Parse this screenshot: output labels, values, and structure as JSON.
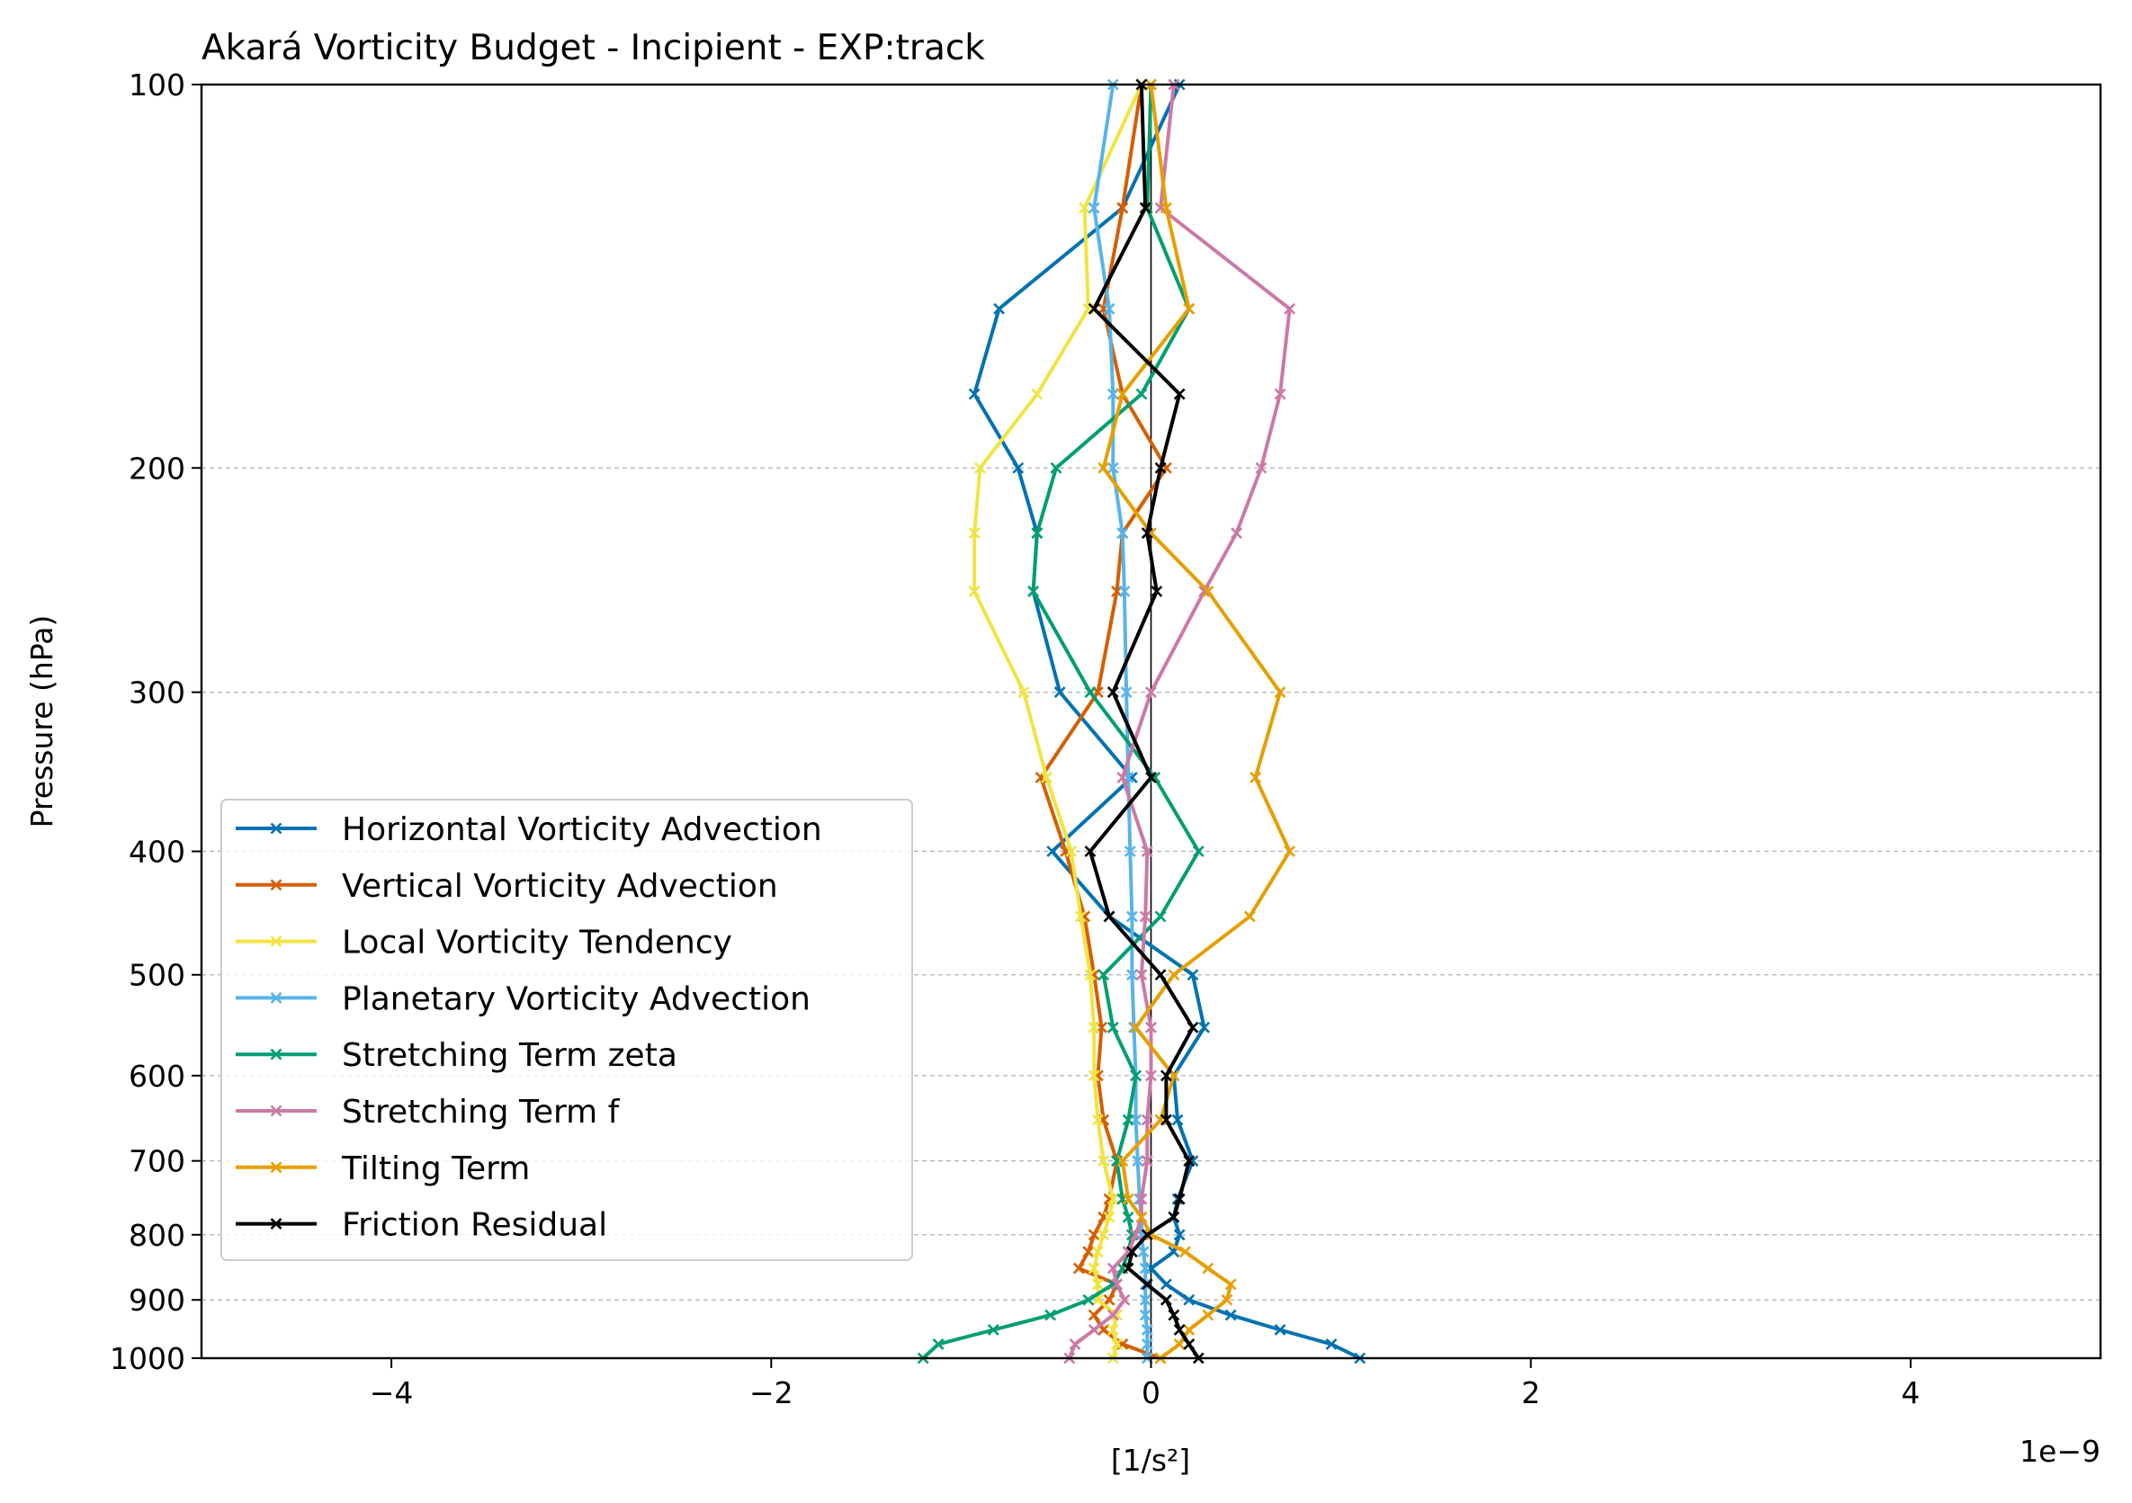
{
  "chart_data": {
    "type": "line",
    "title": "Akará Vorticity Budget - Incipient - EXP:track",
    "xlabel": "[1/s²]",
    "ylabel": "Pressure (hPa)",
    "x_offset_label": "1e−9",
    "x_scale_factor": 1e-09,
    "xlim": [
      -5,
      5
    ],
    "ylim": [
      1000,
      100
    ],
    "y_scale": "log",
    "x_ticks": [
      -4,
      -2,
      0,
      2,
      4
    ],
    "x_tick_labels": [
      "−4",
      "−2",
      "0",
      "2",
      "4"
    ],
    "y_ticks": [
      100,
      200,
      300,
      400,
      500,
      600,
      700,
      800,
      900,
      1000
    ],
    "y_tick_labels": [
      "100",
      "200",
      "300",
      "400",
      "500",
      "600",
      "700",
      "800",
      "900",
      "1000"
    ],
    "grid": "horizontal dashed at y ticks",
    "zero_line": true,
    "legend_position": "lower-left",
    "pressure_levels": [
      1000,
      975,
      950,
      925,
      900,
      875,
      850,
      825,
      800,
      775,
      750,
      700,
      650,
      600,
      550,
      500,
      450,
      400,
      350,
      300,
      250,
      225,
      200,
      175,
      150,
      125,
      100
    ],
    "series": [
      {
        "name": "Horizontal Vorticity Advection",
        "color": "#0072B2",
        "values": [
          1.1,
          0.95,
          0.68,
          0.42,
          0.2,
          0.08,
          0.0,
          0.12,
          0.15,
          0.12,
          0.14,
          0.22,
          0.14,
          0.12,
          0.28,
          0.22,
          -0.22,
          -0.52,
          -0.1,
          -0.48,
          -0.62,
          -0.6,
          -0.7,
          -0.93,
          -0.8,
          -0.15,
          0.15
        ]
      },
      {
        "name": "Vertical Vorticity Advection",
        "color": "#D55E00",
        "values": [
          0.05,
          -0.15,
          -0.25,
          -0.3,
          -0.22,
          -0.18,
          -0.38,
          -0.33,
          -0.3,
          -0.25,
          -0.22,
          -0.18,
          -0.25,
          -0.28,
          -0.26,
          -0.3,
          -0.35,
          -0.45,
          -0.58,
          -0.28,
          -0.18,
          -0.15,
          0.08,
          -0.15,
          -0.25,
          -0.15,
          -0.05
        ]
      },
      {
        "name": "Local Vorticity Tendency",
        "color": "#F0E442",
        "values": [
          -0.2,
          -0.18,
          -0.2,
          -0.18,
          -0.28,
          -0.28,
          -0.3,
          -0.28,
          -0.25,
          -0.22,
          -0.2,
          -0.25,
          -0.28,
          -0.3,
          -0.3,
          -0.32,
          -0.37,
          -0.42,
          -0.55,
          -0.67,
          -0.93,
          -0.93,
          -0.9,
          -0.6,
          -0.33,
          -0.35,
          -0.05
        ]
      },
      {
        "name": "Planetary Vorticity Advection",
        "color": "#56B4E9",
        "values": [
          -0.02,
          -0.02,
          -0.02,
          -0.03,
          -0.03,
          -0.03,
          -0.03,
          -0.04,
          -0.05,
          -0.05,
          -0.06,
          -0.07,
          -0.08,
          -0.08,
          -0.09,
          -0.1,
          -0.1,
          -0.11,
          -0.12,
          -0.13,
          -0.14,
          -0.15,
          -0.2,
          -0.2,
          -0.22,
          -0.3,
          -0.2
        ]
      },
      {
        "name": "Stretching Term zeta",
        "color": "#009E73",
        "values": [
          -1.2,
          -1.12,
          -0.83,
          -0.53,
          -0.33,
          -0.2,
          -0.15,
          -0.12,
          -0.1,
          -0.12,
          -0.15,
          -0.18,
          -0.12,
          -0.08,
          -0.2,
          -0.25,
          0.05,
          0.25,
          0.02,
          -0.32,
          -0.62,
          -0.6,
          -0.5,
          -0.05,
          0.2,
          -0.02,
          0.0
        ]
      },
      {
        "name": "Stretching Term f",
        "color": "#CC79A7",
        "values": [
          -0.43,
          -0.4,
          -0.3,
          -0.2,
          -0.14,
          -0.18,
          -0.2,
          -0.12,
          -0.08,
          -0.05,
          -0.05,
          -0.02,
          -0.02,
          0.0,
          0.0,
          -0.05,
          -0.03,
          -0.02,
          -0.15,
          0.0,
          0.28,
          0.45,
          0.58,
          0.68,
          0.73,
          0.05,
          0.12
        ]
      },
      {
        "name": "Tilting Term",
        "color": "#E69F00",
        "values": [
          0.05,
          0.15,
          0.2,
          0.3,
          0.4,
          0.42,
          0.3,
          0.18,
          0.0,
          -0.05,
          -0.12,
          -0.15,
          0.05,
          0.12,
          -0.08,
          0.12,
          0.52,
          0.73,
          0.55,
          0.68,
          0.3,
          0.0,
          -0.25,
          -0.15,
          0.2,
          0.08,
          0.0
        ]
      },
      {
        "name": "Friction Residual",
        "color": "#000000",
        "values": [
          0.25,
          0.2,
          0.15,
          0.12,
          0.08,
          -0.02,
          -0.12,
          -0.1,
          -0.02,
          0.12,
          0.15,
          0.2,
          0.08,
          0.08,
          0.22,
          0.05,
          -0.22,
          -0.32,
          0.0,
          -0.2,
          0.03,
          -0.02,
          0.05,
          0.15,
          -0.3,
          -0.03,
          -0.05
        ]
      }
    ]
  }
}
